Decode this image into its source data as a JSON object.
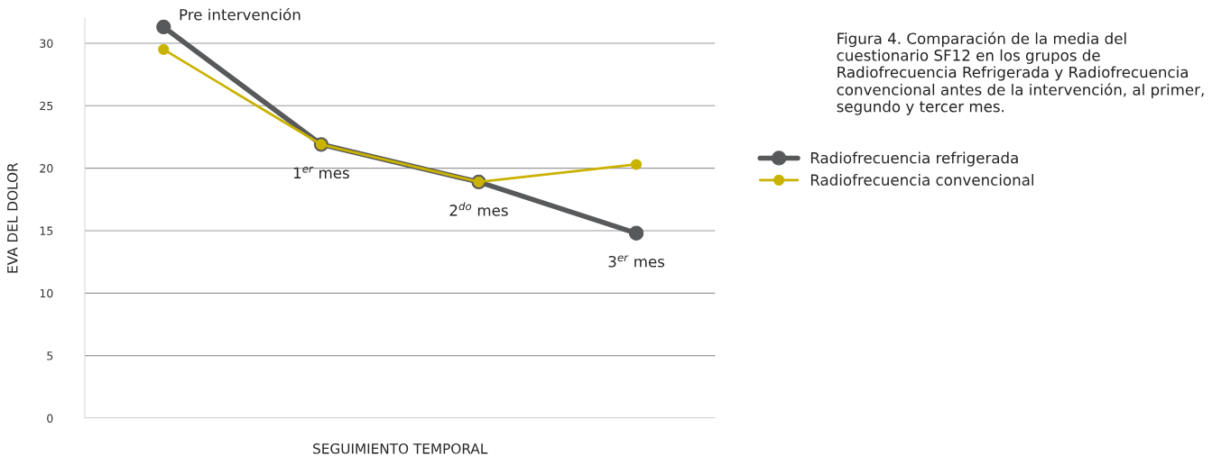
{
  "chart_data": {
    "type": "line",
    "xlabel": "SEGUIMIENTO TEMPORAL",
    "ylabel": "EVA DEL DOLOR",
    "categories": [
      "Pre intervención",
      "1$^{er}$ mes",
      "2$^{do}$ mes",
      "3$^{er}$ mes"
    ],
    "series": [
      {
        "name": "Radiofrecuencia refrigerada",
        "color": "#58595b",
        "values": [
          31.3,
          21.9,
          18.9,
          14.8
        ]
      },
      {
        "name": "Radiofrecuencia convencional",
        "color": "#c9b200",
        "values": [
          29.5,
          21.9,
          18.9,
          20.3
        ]
      }
    ],
    "ylim": [
      0,
      32
    ],
    "yticks": [
      0,
      5,
      10,
      15,
      20,
      25,
      30
    ],
    "grid": "y",
    "legend": "right",
    "marker": "circle",
    "line_style": "solid",
    "annotations": [
      "Figura 4. Comparación de la media del cuestionario SF12 en los grupos de Radiofrecuencia Refrigerada y Radiofrecuencia convencional antes de la intervención, al primer, segundo y tercer mes."
    ]
  }
}
